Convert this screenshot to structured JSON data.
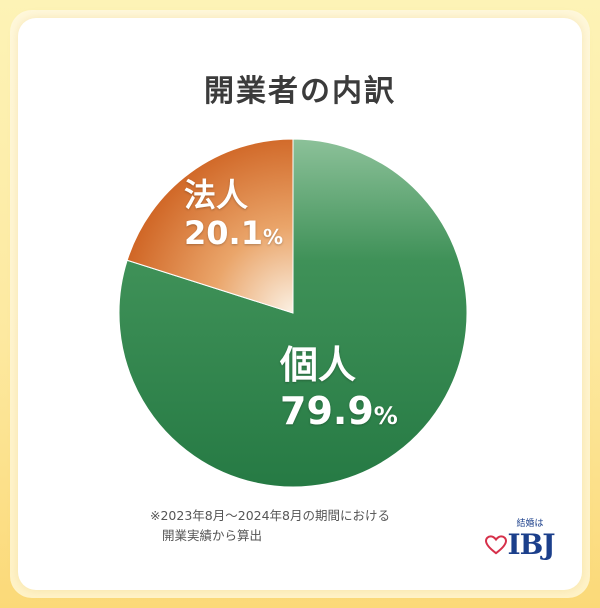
{
  "chart_data": {
    "type": "pie",
    "title": "開業者の内訳",
    "slices": [
      {
        "label": "個人",
        "value": 79.9,
        "display": "79.9",
        "unit": "%",
        "color": "#2e7d4a"
      },
      {
        "label": "法人",
        "value": 20.1,
        "display": "20.1",
        "unit": "%",
        "color": "#d6702a"
      }
    ]
  },
  "footnote": {
    "line1": "※2023年8月～2024年8月の期間における",
    "line2": "開業実績から算出"
  },
  "logo": {
    "tagline": "結婚は",
    "brand": "IBJ",
    "color": "#1b3f8b",
    "heart_color": "#d6304a"
  }
}
